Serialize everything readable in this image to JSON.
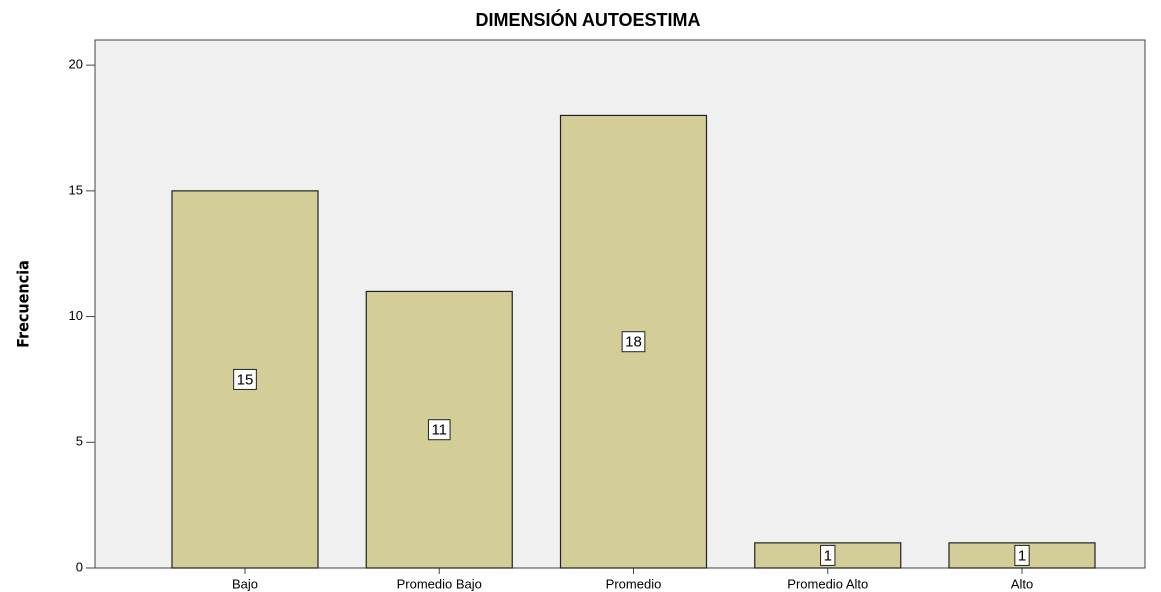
{
  "chart_data": {
    "type": "bar",
    "title": "DIMENSIÓN AUTOESTIMA",
    "y_label": "Frecuencia",
    "categories": [
      "Bajo",
      "Promedio Bajo",
      "Promedio",
      "Promedio Alto",
      "Alto"
    ],
    "values": [
      15,
      11,
      18,
      1,
      1
    ],
    "color": "#d3cd98",
    "ylim": [
      0,
      21
    ],
    "yticks": [
      0,
      5,
      10,
      15,
      20
    ],
    "grid": false,
    "data_labels": true
  }
}
